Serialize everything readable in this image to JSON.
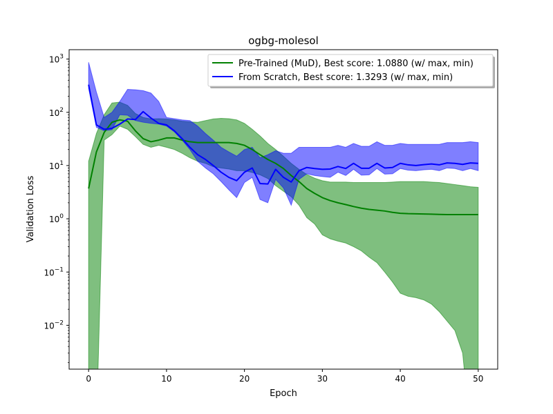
{
  "chart_data": {
    "type": "line",
    "title": "ogbg-molesol",
    "xlabel": "Epoch",
    "ylabel": "Validation Loss",
    "xlim": [
      -2.5,
      52.5
    ],
    "ylim": [
      0.0015,
      1500
    ],
    "yscale": "log",
    "grid": false,
    "legend_position": "top-right",
    "x_ticks": [
      0,
      10,
      20,
      30,
      40,
      50
    ],
    "x_tick_labels": [
      "0",
      "10",
      "20",
      "30",
      "40",
      "50"
    ],
    "y_ticks": [
      0.01,
      0.1,
      1,
      10,
      100,
      1000
    ],
    "y_tick_labels": [
      {
        "base": "10",
        "exp": "−2"
      },
      {
        "base": "10",
        "exp": "−1"
      },
      {
        "base": "10",
        "exp": "0"
      },
      {
        "base": "10",
        "exp": "1"
      },
      {
        "base": "10",
        "exp": "2"
      },
      {
        "base": "10",
        "exp": "3"
      }
    ],
    "series": [
      {
        "name": "Pre-Trained (MuD), Best score: 1.0880 (w/ max, min)",
        "color": "#008000",
        "x": [
          0,
          1,
          2,
          3,
          4,
          5,
          6,
          7,
          8,
          9,
          10,
          11,
          12,
          13,
          14,
          15,
          16,
          17,
          18,
          19,
          20,
          21,
          22,
          23,
          24,
          25,
          26,
          27,
          28,
          29,
          30,
          31,
          32,
          33,
          34,
          35,
          36,
          37,
          38,
          39,
          40,
          41,
          42,
          43,
          44,
          45,
          46,
          47,
          48,
          49,
          50
        ],
        "values": [
          3.7,
          18,
          42,
          65,
          72,
          68,
          45,
          32,
          28,
          30,
          33,
          33,
          30,
          28,
          27,
          27,
          27,
          27,
          27,
          26,
          24,
          20,
          16,
          13,
          11,
          8.8,
          6.5,
          5.0,
          3.7,
          3.0,
          2.5,
          2.2,
          2.0,
          1.85,
          1.7,
          1.58,
          1.5,
          1.45,
          1.4,
          1.32,
          1.27,
          1.25,
          1.24,
          1.23,
          1.22,
          1.21,
          1.2,
          1.2,
          1.2,
          1.2,
          1.2
        ],
        "upper": [
          12,
          40,
          90,
          150,
          155,
          135,
          95,
          80,
          75,
          76,
          75,
          72,
          68,
          66,
          65,
          70,
          75,
          77,
          76,
          72,
          62,
          48,
          36,
          26,
          20,
          15,
          11,
          8.5,
          6.8,
          5.8,
          5.2,
          4.9,
          4.9,
          4.9,
          4.8,
          4.8,
          4.8,
          4.8,
          4.8,
          4.9,
          5.0,
          5.0,
          5.0,
          5.0,
          4.9,
          4.8,
          4.6,
          4.4,
          4.2,
          4.0,
          3.9
        ],
        "lower": [
          0.0001,
          0.0001,
          30,
          38,
          55,
          48,
          35,
          25,
          22,
          24,
          22,
          20,
          17,
          14,
          12,
          11,
          9.5,
          9.0,
          8.6,
          8.0,
          8.0,
          7.4,
          6.7,
          5.7,
          4.2,
          3.3,
          2.6,
          1.8,
          1.05,
          0.8,
          0.5,
          0.42,
          0.38,
          0.35,
          0.3,
          0.25,
          0.19,
          0.15,
          0.1,
          0.065,
          0.04,
          0.035,
          0.033,
          0.03,
          0.025,
          0.018,
          0.012,
          0.008,
          0.003,
          0.0001,
          0.0001
        ]
      },
      {
        "name": "From Scratch, Best score: 1.3293 (w/ max, min)",
        "color": "#0000ff",
        "x": [
          0,
          1,
          2,
          3,
          4,
          5,
          6,
          7,
          8,
          9,
          10,
          11,
          12,
          13,
          14,
          15,
          16,
          17,
          18,
          19,
          20,
          21,
          22,
          23,
          24,
          25,
          26,
          27,
          28,
          29,
          30,
          31,
          32,
          33,
          34,
          35,
          36,
          37,
          38,
          39,
          40,
          41,
          42,
          43,
          44,
          45,
          46,
          47,
          48,
          49,
          50
        ],
        "values": [
          330,
          58,
          48,
          50,
          60,
          75,
          73,
          103,
          78,
          62,
          58,
          45,
          32,
          22,
          16,
          13,
          10,
          7.5,
          6.0,
          5.2,
          7.5,
          9.0,
          4.6,
          4.5,
          8.5,
          6.0,
          4.9,
          8.0,
          9.2,
          8.8,
          8.5,
          8.6,
          9.6,
          8.8,
          11,
          8.9,
          8.9,
          11,
          9.0,
          9.2,
          11,
          10.3,
          10,
          10.4,
          10.7,
          10.3,
          11.2,
          11,
          10.5,
          11.2,
          11
        ],
        "upper": [
          870,
          240,
          80,
          100,
          160,
          270,
          265,
          255,
          230,
          160,
          80,
          76,
          72,
          70,
          55,
          40,
          30,
          22,
          18,
          15,
          20,
          22,
          14,
          16,
          19,
          17,
          17,
          22,
          22,
          22,
          22,
          22,
          24,
          22,
          26,
          23,
          23,
          28,
          24,
          24,
          26,
          25,
          25,
          25,
          25,
          25,
          27,
          27,
          27,
          28,
          27
        ],
        "lower": [
          280,
          52,
          45,
          47,
          90,
          88,
          70,
          65,
          62,
          60,
          55,
          43,
          30,
          20,
          12,
          9,
          7,
          5,
          3.5,
          2.5,
          4.8,
          6.0,
          2.3,
          2.0,
          5.5,
          3.8,
          1.8,
          5.5,
          7.0,
          6.5,
          6.2,
          6.0,
          7.5,
          6.5,
          8.5,
          6.6,
          6.7,
          8.8,
          6.9,
          7.0,
          8.8,
          8.2,
          8.0,
          8.3,
          8.5,
          8.0,
          9.0,
          8.8,
          8.0,
          8.8,
          8.0
        ]
      }
    ]
  }
}
